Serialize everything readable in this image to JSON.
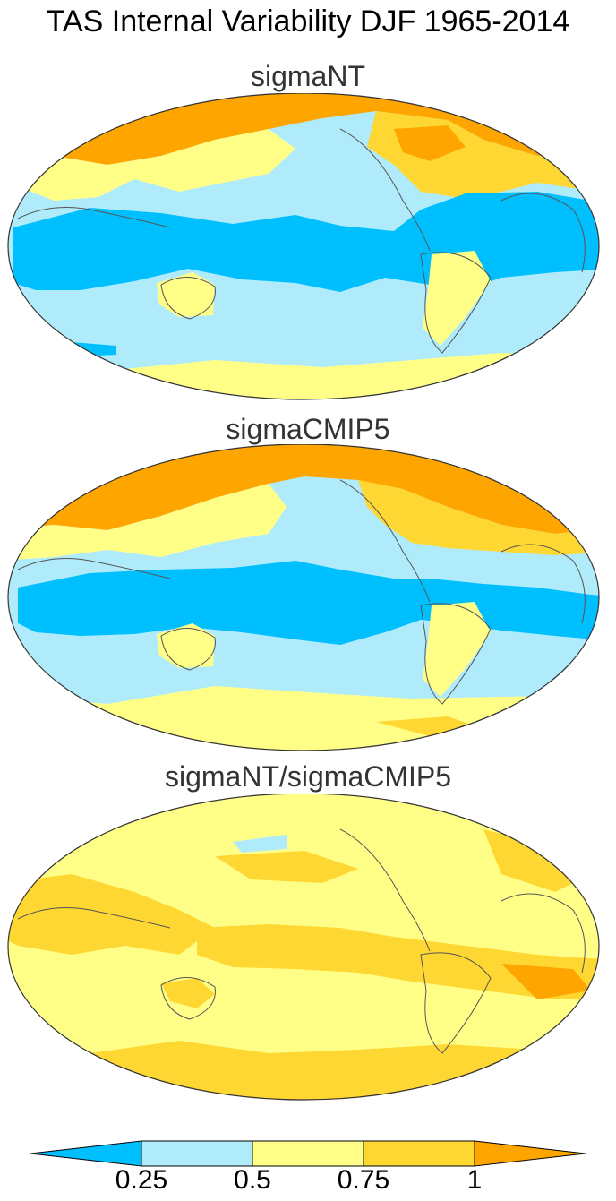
{
  "title": "TAS Internal Variability DJF 1965-2014",
  "panels": [
    {
      "id": "nt",
      "title": "sigmaNT"
    },
    {
      "id": "cmip",
      "title": "sigmaCMIP5"
    },
    {
      "id": "ratio",
      "title": "sigmaNT/sigmaCMIP5"
    }
  ],
  "colorbar": {
    "levels": [
      0.25,
      0.5,
      0.75,
      1
    ],
    "labels": [
      "0.25",
      "0.5",
      "0.75",
      "1"
    ],
    "colors": [
      "#00bfff",
      "#b0ebfb",
      "#ffff88",
      "#ffd733",
      "#ffa500"
    ]
  },
  "colors": {
    "coastline": "#555555",
    "outline": "#333333"
  }
}
